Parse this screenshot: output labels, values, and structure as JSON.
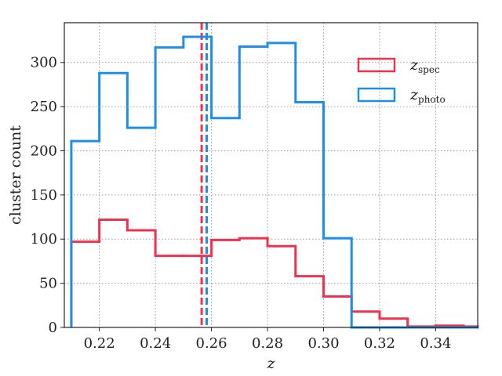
{
  "chart_data": {
    "type": "histogram",
    "xlabel": "z",
    "ylabel": "cluster count",
    "xlim": [
      0.2075,
      0.355
    ],
    "ylim": [
      0,
      345
    ],
    "grid": true,
    "legend_position": "upper-right",
    "bin_edges": [
      0.21,
      0.22,
      0.23,
      0.24,
      0.25,
      0.26,
      0.27,
      0.28,
      0.29,
      0.3,
      0.31,
      0.32,
      0.33,
      0.34,
      0.35,
      0.355
    ],
    "x_ticks": [
      0.22,
      0.24,
      0.26,
      0.28,
      0.3,
      0.32,
      0.34
    ],
    "x_tick_labels": [
      "0.22",
      "0.24",
      "0.26",
      "0.28",
      "0.30",
      "0.32",
      "0.34"
    ],
    "y_ticks": [
      0,
      50,
      100,
      150,
      200,
      250,
      300
    ],
    "y_tick_labels": [
      "0",
      "50",
      "100",
      "150",
      "200",
      "250",
      "300"
    ],
    "series": [
      {
        "name": "z_spec",
        "legend_main": "z",
        "legend_sub": "spec",
        "color": "#f0324f",
        "counts": [
          97,
          122,
          110,
          81,
          81,
          99,
          101,
          92,
          58,
          35,
          18,
          10,
          1,
          2,
          1
        ],
        "median": 0.2565
      },
      {
        "name": "z_photo",
        "legend_main": "z",
        "legend_sub": "photo",
        "color": "#1e8fe6",
        "counts": [
          211,
          288,
          226,
          317,
          329,
          237,
          318,
          322,
          255,
          101,
          0,
          0,
          0,
          0,
          0
        ],
        "median": 0.2583
      }
    ]
  }
}
